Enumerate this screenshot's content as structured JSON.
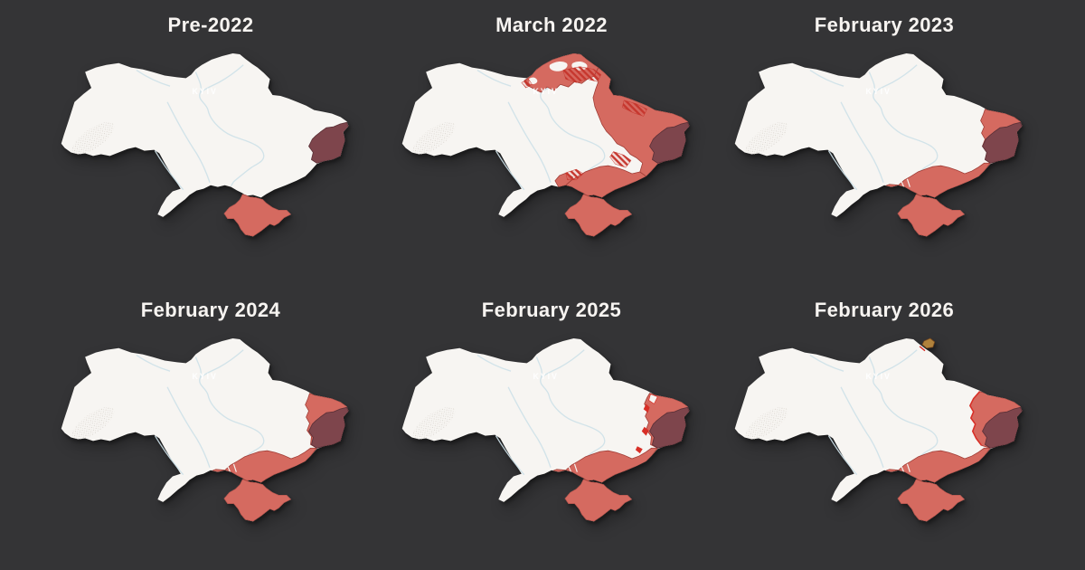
{
  "page": {
    "background": "#343436",
    "title_color": "#f7f4f1"
  },
  "colors": {
    "map_base": "#f7f5f2",
    "river": "#cfe2e9",
    "occupied": "#d56a60",
    "occupied_border": "#a03c35",
    "occupied_pre2022": "#7e454c",
    "occupied_pre2022_border": "#5d3138",
    "contested_hatch": "#c6372e",
    "contested_hatch_bg": "rgba(216,90,80,0.16)",
    "recent_advance": "#d82f27",
    "ukrainian_incursion": "#b0823c",
    "ukrainian_incursion_border": "#7a4a1e",
    "carpathian_speckle": "#c9c3ba"
  },
  "map": {
    "city_label": "KYIV"
  },
  "panels": [
    {
      "label": "Pre-2022",
      "regions": [
        "crimea",
        "donbas_core"
      ]
    },
    {
      "label": "March 2022",
      "regions": [
        "north_salmon",
        "east_salmon_2022",
        "south_salmon_2022",
        "west_bulge_2022",
        "hole_n1",
        "hole_n2",
        "hole_n3",
        "hatch_north",
        "hatch_kyiv_west",
        "hatch_kharkiv",
        "hatch_mykolaiv",
        "hatch_zaporizhzhia",
        "donbas_core",
        "crimea"
      ]
    },
    {
      "label": "February 2023",
      "regions": [
        "east_band_2023",
        "south_band",
        "delta_marks",
        "donbas_core",
        "crimea"
      ]
    },
    {
      "label": "February 2024",
      "regions": [
        "east_band_2024",
        "south_band",
        "delta_marks",
        "donbas_core",
        "crimea"
      ]
    },
    {
      "label": "February 2025",
      "regions": [
        "east_band_2025",
        "south_band",
        "delta_marks",
        "donbas_core",
        "crimea",
        "notch_2025",
        "adv_2025a",
        "adv_2025b",
        "adv_2025c"
      ]
    },
    {
      "label": "February 2026",
      "regions": [
        "east_band_2026",
        "edge_2026",
        "south_band",
        "delta_marks",
        "donbas_core",
        "crimea",
        "gold_2026",
        "gold_edge_2026"
      ]
    }
  ]
}
